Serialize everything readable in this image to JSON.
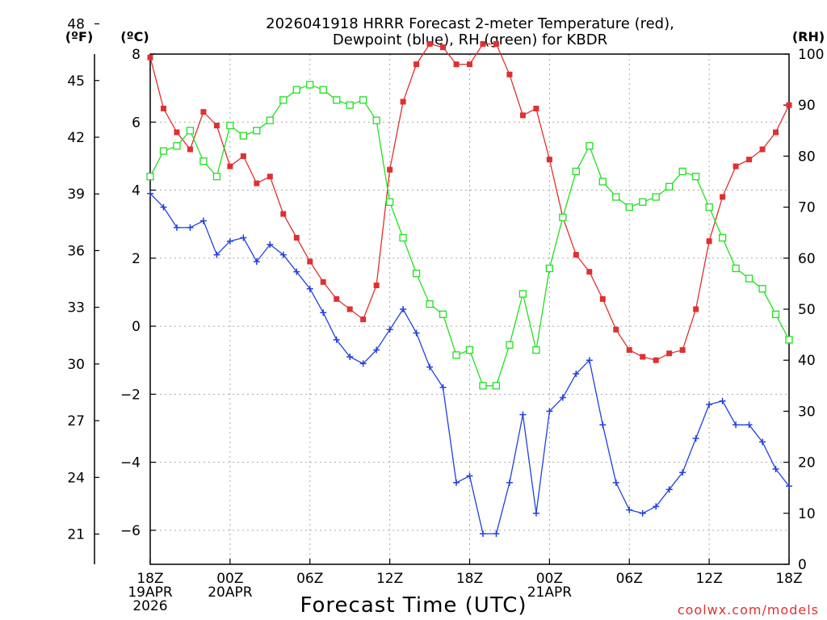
{
  "chart_data": {
    "type": "line",
    "title": "2026041918 HRRR Forecast 2-meter Temperature (red),",
    "subtitle": "Dewpoint (blue), RH (green) for KBDR",
    "xlabel": "Forecast Time (UTC)",
    "credit": "coolwx.com/models",
    "units": {
      "fahrenheit": "(ºF)",
      "celsius": "(ºC)",
      "rh": "(RH)"
    },
    "x": {
      "hours": [
        0,
        48
      ],
      "ticks": [
        {
          "h": 0,
          "lines": [
            "18Z",
            "19APR",
            "2026"
          ]
        },
        {
          "h": 6,
          "lines": [
            "00Z",
            "20APR"
          ]
        },
        {
          "h": 12,
          "lines": [
            "06Z"
          ]
        },
        {
          "h": 18,
          "lines": [
            "12Z"
          ]
        },
        {
          "h": 24,
          "lines": [
            "18Z"
          ]
        },
        {
          "h": 30,
          "lines": [
            "00Z",
            "21APR"
          ]
        },
        {
          "h": 36,
          "lines": [
            "06Z"
          ]
        },
        {
          "h": 42,
          "lines": [
            "12Z"
          ]
        },
        {
          "h": 48,
          "lines": [
            "18Z"
          ]
        }
      ]
    },
    "celsius_axis": {
      "range": [
        -7,
        8
      ],
      "ticks": [
        "8",
        "6",
        "4",
        "2",
        "0",
        "−2",
        "−4",
        "−6"
      ],
      "tick_values": [
        8,
        6,
        4,
        2,
        0,
        -2,
        -4,
        -6
      ]
    },
    "fahrenheit_axis": {
      "ticks": [
        "48",
        "45",
        "42",
        "39",
        "36",
        "33",
        "30",
        "27",
        "24",
        "21"
      ],
      "tick_values": [
        48,
        45,
        42,
        39,
        36,
        33,
        30,
        27,
        24,
        21
      ]
    },
    "rh_axis": {
      "range": [
        0,
        100
      ],
      "ticks": [
        "100",
        "90",
        "80",
        "70",
        "60",
        "50",
        "40",
        "30",
        "20",
        "10",
        "0"
      ],
      "tick_values": [
        100,
        90,
        80,
        70,
        60,
        50,
        40,
        30,
        20,
        10,
        0
      ]
    },
    "series": [
      {
        "name": "Temperature",
        "color": "#e03030",
        "marker": "filled-square",
        "axis": "celsius",
        "values": [
          7.9,
          6.4,
          5.7,
          5.2,
          6.3,
          5.9,
          4.7,
          5.0,
          4.2,
          4.4,
          3.3,
          2.6,
          1.9,
          1.3,
          0.8,
          0.5,
          0.2,
          1.2,
          4.6,
          6.6,
          7.7,
          8.3,
          8.2,
          7.7,
          7.7,
          8.3,
          8.3,
          7.4,
          6.2,
          6.4,
          4.9,
          3.2,
          2.1,
          1.6,
          0.8,
          -0.1,
          -0.7,
          -0.9,
          -1.0,
          -0.8,
          -0.7,
          0.5,
          2.5,
          3.8,
          4.7,
          4.9,
          5.2,
          5.7,
          6.5
        ]
      },
      {
        "name": "Dewpoint",
        "color": "#2040e0",
        "marker": "plus",
        "axis": "celsius",
        "values": [
          3.9,
          3.5,
          2.9,
          2.9,
          3.1,
          2.1,
          2.5,
          2.6,
          1.9,
          2.4,
          2.1,
          1.6,
          1.1,
          0.4,
          -0.4,
          -0.9,
          -1.1,
          -0.7,
          -0.1,
          0.5,
          -0.2,
          -1.2,
          -1.8,
          -4.6,
          -4.4,
          -6.1,
          -6.1,
          -4.6,
          -2.6,
          -5.5,
          -2.5,
          -2.1,
          -1.4,
          -1.0,
          -2.9,
          -4.6,
          -5.4,
          -5.5,
          -5.3,
          -4.8,
          -4.3,
          -3.3,
          -2.3,
          -2.2,
          -2.9,
          -2.9,
          -3.4,
          -4.2,
          -4.7
        ]
      },
      {
        "name": "RH",
        "color": "#20e020",
        "marker": "open-square",
        "axis": "rh",
        "values": [
          76,
          81,
          82,
          85,
          79,
          76,
          86,
          84,
          85,
          87,
          91,
          93,
          94,
          93,
          91,
          90,
          91,
          87,
          71,
          64,
          57,
          51,
          49,
          41,
          42,
          35,
          35,
          43,
          53,
          42,
          58,
          68,
          77,
          82,
          75,
          72,
          70,
          71,
          72,
          74,
          77,
          76,
          70,
          64,
          58,
          56,
          54,
          49,
          44
        ]
      }
    ]
  }
}
